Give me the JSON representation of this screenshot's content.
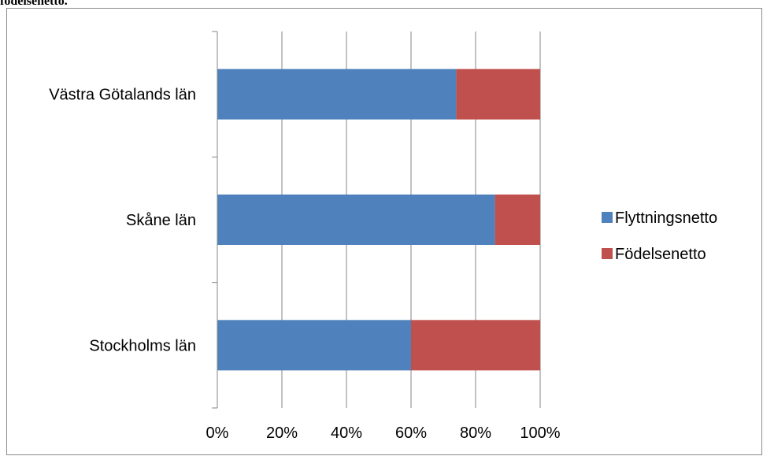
{
  "header_text": "födelsenetto.",
  "chart_data": {
    "type": "bar",
    "orientation": "horizontal",
    "stacked": "percent",
    "categories": [
      "Västra Götalands län",
      "Skåne län",
      "Stockholms län"
    ],
    "series": [
      {
        "name": "Flyttningsnetto",
        "color": "#4f81bd",
        "values": [
          74,
          86,
          60
        ]
      },
      {
        "name": "Födelsenetto",
        "color": "#c0504d",
        "values": [
          26,
          14,
          40
        ]
      }
    ],
    "xticks": [
      "0%",
      "20%",
      "40%",
      "60%",
      "80%",
      "100%"
    ],
    "xlim": [
      0,
      100
    ],
    "grid": "vertical",
    "legend": "right"
  }
}
